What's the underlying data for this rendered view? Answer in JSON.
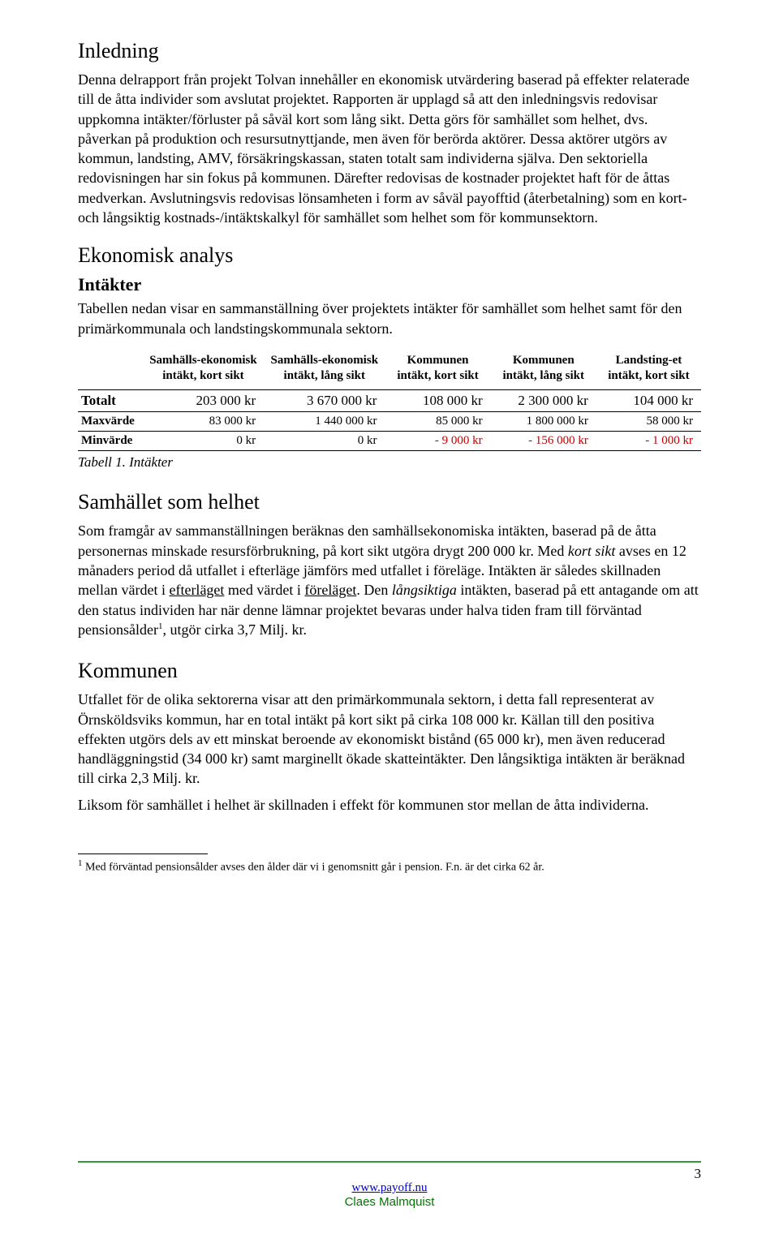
{
  "sections": {
    "inledning": {
      "title": "Inledning",
      "body": "Denna delrapport från projekt Tolvan innehåller en ekonomisk utvärdering baserad på effekter relaterade till de åtta individer som avslutat projektet. Rapporten är upplagd så att den inledningsvis redovisar uppkomna intäkter/förluster på såväl kort som lång sikt. Detta görs för samhället som helhet, dvs. påverkan på produktion och resursutnyttjande, men även för berörda aktörer. Dessa aktörer utgörs av kommun, landsting, AMV, försäkringskassan, staten totalt sam individerna själva. Den sektoriella redovisningen har sin fokus på kommunen. Därefter redovisas de kostnader projektet haft för de åttas medverkan. Avslutningsvis redovisas lönsamheten i form av såväl payofftid (återbetalning) som en kort- och långsiktig kostnads-/intäktskalkyl för samhället som helhet som för kommunsektorn."
    },
    "ekonomisk": {
      "title": "Ekonomisk analys",
      "intakter_title": "Intäkter",
      "intakter_intro": "Tabellen nedan visar en sammanställning över projektets intäkter för samhället som helhet samt för den primärkommunala och landstingskommunala sektorn."
    },
    "samhallet": {
      "title": "Samhället som helhet",
      "p1a": "Som framgår av sammanställningen beräknas den samhällsekonomiska intäkten, baserad på de åtta personernas minskade resursförbrukning, på kort sikt utgöra drygt 200 000 kr. Med ",
      "p1b_italic": "kort sikt",
      "p1c": " avses en 12 månaders period då utfallet i efterläge jämförs med utfallet i föreläge. Intäkten är således skillnaden mellan värdet i ",
      "p1d_ul": "efterläget",
      "p1e": " med värdet i ",
      "p1f_ul": "föreläget",
      "p1g": ". Den ",
      "p1h_italic": "långsiktiga",
      "p1i": " intäkten, baserad på ett antagande om att den status individen har när denne lämnar projektet bevaras under halva tiden fram till förväntad pensionsålder",
      "p1j_sup": "1",
      "p1k": ", utgör cirka 3,7 Milj. kr."
    },
    "kommunen": {
      "title": "Kommunen",
      "p1": "Utfallet för de olika sektorerna visar att den primärkommunala sektorn, i detta fall representerat av Örnsköldsviks kommun, har en total intäkt på kort sikt på cirka 108 000 kr. Källan till den positiva effekten utgörs dels av ett minskat beroende av ekonomiskt bistånd (65 000 kr), men även reducerad handläggningstid (34 000 kr) samt marginellt ökade skatteintäkter. Den långsiktiga intäkten är beräknad till cirka 2,3 Milj. kr.",
      "p2": "Liksom för samhället i helhet är skillnaden i effekt för kommunen stor mellan de åtta individerna."
    }
  },
  "table": {
    "caption": "Tabell 1. Intäkter",
    "columns": [
      "Samhälls-ekonomisk intäkt, kort sikt",
      "Samhälls-ekonomisk intäkt, lång sikt",
      "Kommunen intäkt, kort sikt",
      "Kommunen intäkt, lång sikt",
      "Landsting-et intäkt, kort sikt"
    ],
    "rows": [
      {
        "label": "Totalt",
        "cells": [
          "203 000 kr",
          "3 670 000 kr",
          "108 000 kr",
          "2 300 000 kr",
          "104 000 kr"
        ],
        "neg": [
          false,
          false,
          false,
          false,
          false
        ],
        "class": "totalrow"
      },
      {
        "label": "Maxvärde",
        "cells": [
          "83 000 kr",
          "1 440 000 kr",
          "85 000 kr",
          "1 800 000 kr",
          "58 000 kr"
        ],
        "neg": [
          false,
          false,
          false,
          false,
          false
        ],
        "class": "subrow"
      },
      {
        "label": "Minvärde",
        "cells": [
          "0 kr",
          "0 kr",
          "- 9 000 kr",
          "- 156 000 kr",
          "- 1 000 kr"
        ],
        "neg": [
          false,
          false,
          true,
          true,
          true
        ],
        "class": "subrow"
      }
    ]
  },
  "footnote": {
    "marker": "1",
    "text": " Med förväntad pensionsålder avses den ålder där vi i genomsnitt går i pension. F.n. är det cirka 62 år."
  },
  "footer": {
    "link": "www.payoff.nu",
    "author": "Claes Malmquist",
    "page": "3"
  },
  "colors": {
    "negative": "#c00000",
    "link": "#0000cc",
    "author": "#007700",
    "rule": "#339933"
  }
}
